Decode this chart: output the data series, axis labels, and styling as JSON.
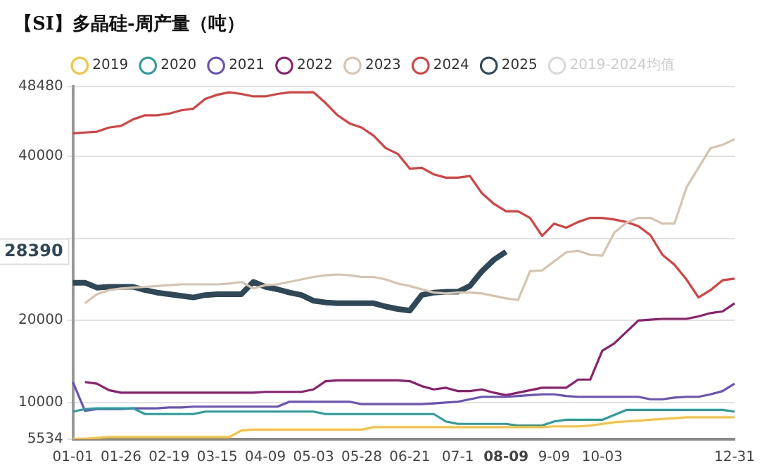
{
  "chart_data": {
    "type": "line",
    "title": "【SI】多晶硅-周产量（吨）",
    "categories": [
      "01-01",
      null,
      null,
      null,
      "01-26",
      null,
      null,
      null,
      "02-19",
      null,
      null,
      null,
      "03-15",
      null,
      null,
      null,
      "04-09",
      null,
      null,
      null,
      "05-03",
      null,
      null,
      null,
      "05-28",
      null,
      null,
      null,
      "06-21",
      null,
      null,
      null,
      "07-1",
      null,
      null,
      null,
      "08-09",
      null,
      null,
      null,
      "9-09",
      null,
      null,
      null,
      "10-03",
      null,
      null,
      null,
      null,
      null,
      null,
      null,
      null,
      null,
      null,
      "12-31"
    ],
    "series": [
      {
        "name": "2019",
        "color": "#f9c23c",
        "values": [
          5600,
          5600,
          5700,
          5800,
          5800,
          5800,
          5800,
          5800,
          5800,
          5800,
          5800,
          5800,
          5800,
          5800,
          6600,
          6700,
          6700,
          6700,
          6700,
          6700,
          6700,
          6700,
          6700,
          6700,
          6700,
          7000,
          7000,
          7000,
          7000,
          7000,
          7000,
          7000,
          7000,
          7000,
          7000,
          7000,
          7000,
          7000,
          7000,
          7000,
          7100,
          7100,
          7100,
          7200,
          7400,
          7600,
          7700,
          7800,
          7900,
          8000,
          8100,
          8200,
          8200,
          8200,
          8200,
          8200
        ]
      },
      {
        "name": "2020",
        "color": "#2a9d9f",
        "values": [
          8900,
          9200,
          9300,
          9300,
          9300,
          9300,
          8600,
          8600,
          8600,
          8600,
          8600,
          8900,
          8900,
          8900,
          8900,
          8900,
          8900,
          8900,
          8900,
          8900,
          8900,
          8600,
          8600,
          8600,
          8600,
          8600,
          8600,
          8600,
          8600,
          8600,
          8600,
          7700,
          7400,
          7400,
          7400,
          7400,
          7400,
          7200,
          7200,
          7200,
          7700,
          7900,
          7900,
          7900,
          7900,
          8500,
          9100,
          9100,
          9100,
          9100,
          9100,
          9100,
          9100,
          9100,
          9100,
          8900
        ]
      },
      {
        "name": "2021",
        "color": "#6a52b8",
        "values": [
          12500,
          9000,
          9200,
          9200,
          9200,
          9300,
          9300,
          9300,
          9400,
          9400,
          9500,
          9500,
          9500,
          9500,
          9500,
          9500,
          9500,
          9500,
          10100,
          10100,
          10100,
          10100,
          10100,
          10100,
          9800,
          9800,
          9800,
          9800,
          9800,
          9800,
          9900,
          10000,
          10100,
          10400,
          10700,
          10700,
          10700,
          10800,
          10900,
          11000,
          11000,
          10800,
          10700,
          10700,
          10700,
          10700,
          10700,
          10700,
          10400,
          10400,
          10600,
          10700,
          10700,
          11000,
          11400,
          12300
        ]
      },
      {
        "name": "2022",
        "color": "#8e1f6e",
        "values": [
          null,
          12500,
          12300,
          11500,
          11200,
          11200,
          11200,
          11200,
          11200,
          11200,
          11200,
          11200,
          11200,
          11200,
          11200,
          11200,
          11300,
          11300,
          11300,
          11300,
          11600,
          12600,
          12700,
          12700,
          12700,
          12700,
          12700,
          12700,
          12600,
          12000,
          11600,
          11800,
          11400,
          11400,
          11600,
          11200,
          10900,
          11200,
          11500,
          11800,
          11800,
          11800,
          12800,
          12800,
          16300,
          17200,
          18600,
          20000,
          20100,
          20200,
          20200,
          20200,
          20500,
          20900,
          21100,
          22100
        ]
      },
      {
        "name": "2023",
        "color": "#d4c4b0",
        "values": [
          null,
          22100,
          23200,
          23700,
          23900,
          24000,
          24100,
          24200,
          24300,
          24400,
          24400,
          24400,
          24400,
          24500,
          24700,
          23900,
          24300,
          24400,
          24700,
          25000,
          25300,
          25500,
          25600,
          25500,
          25300,
          25300,
          25000,
          24500,
          24200,
          23800,
          23400,
          23300,
          23400,
          23400,
          23300,
          23000,
          22700,
          22500,
          26000,
          26100,
          27200,
          28300,
          28500,
          28000,
          27900,
          30700,
          31900,
          32500,
          32500,
          31800,
          31800,
          36200,
          38600,
          41000,
          41400,
          42100
        ]
      },
      {
        "name": "2024",
        "color": "#d94040",
        "values": [
          42800,
          42900,
          43000,
          43500,
          43700,
          44500,
          45000,
          45000,
          45200,
          45600,
          45800,
          47000,
          47500,
          47800,
          47600,
          47300,
          47300,
          47600,
          47800,
          47800,
          47800,
          46500,
          45000,
          44000,
          43500,
          42500,
          41000,
          40300,
          38500,
          38600,
          37800,
          37400,
          37400,
          37600,
          35500,
          34200,
          33300,
          33300,
          32500,
          30300,
          31800,
          31300,
          32000,
          32500,
          32500,
          32300,
          32000,
          31500,
          30400,
          28000,
          26800,
          25000,
          22800,
          23700,
          24900,
          25100
        ]
      },
      {
        "name": "2025",
        "color": "#2f4858",
        "values": [
          24600,
          24600,
          24000,
          24100,
          24100,
          24100,
          23700,
          23400,
          23200,
          23000,
          22800,
          23100,
          23200,
          23200,
          23200,
          24700,
          24100,
          23800,
          23400,
          23100,
          22400,
          22200,
          22100,
          22100,
          22100,
          22100,
          21700,
          21400,
          21200,
          23100,
          23400,
          23500,
          23500,
          24200,
          26000,
          27400,
          28390,
          null,
          null,
          null,
          null,
          null,
          null,
          null,
          null,
          null,
          null,
          null,
          null,
          null,
          null,
          null,
          null,
          null,
          null,
          null
        ]
      },
      {
        "name": "2019-2024均值",
        "color": "#d9d9d9",
        "values": [
          null,
          null,
          null,
          null,
          null,
          null,
          null,
          null,
          null,
          null,
          null,
          null,
          null,
          null,
          null,
          null,
          null,
          null,
          null,
          null,
          null,
          null,
          null,
          null,
          null,
          null,
          null,
          null,
          null,
          null,
          null,
          null,
          null,
          null,
          null,
          null,
          null,
          null,
          null,
          null,
          null,
          null,
          null,
          null,
          null,
          null,
          null,
          null,
          null,
          null,
          null,
          null,
          null,
          null,
          null,
          null
        ]
      }
    ],
    "ylim": [
      5534,
      48480
    ],
    "yticks": [
      5534,
      10000,
      20000,
      {
        "value": 30000,
        "label": null
      },
      40000,
      48480
    ],
    "grid": "y",
    "legend": "top",
    "line_style": "solid",
    "annotations": [
      "28390"
    ]
  }
}
